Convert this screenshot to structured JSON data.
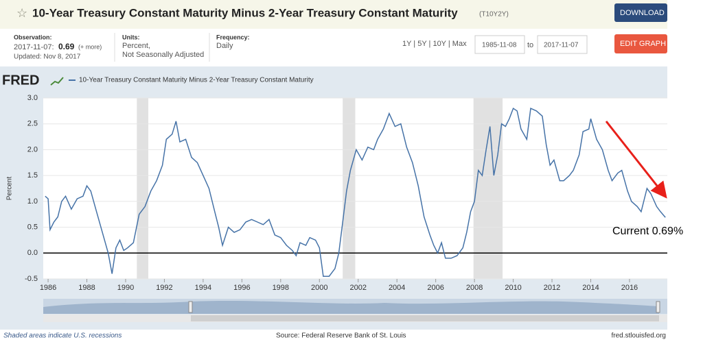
{
  "header": {
    "title": "10-Year Treasury Constant Maturity Minus 2-Year Treasury Constant Maturity",
    "series_id": "(T10Y2Y)",
    "download": "DOWNLOAD",
    "edit_graph": "EDIT GRAPH",
    "observation_label": "Observation:",
    "observation_date": "2017-11-07:",
    "observation_value": 0.69,
    "more": "(+ more)",
    "updated": "Updated: Nov 8, 2017",
    "units_label": "Units:",
    "units_1": "Percent,",
    "units_2": "Not Seasonally Adjusted",
    "frequency_label": "Frequency:",
    "frequency": "Daily",
    "ranges": "1Y | 5Y | 10Y | Max",
    "start_date": "1985-11-08",
    "to": "to",
    "end_date": "2017-11-07"
  },
  "chart_data": {
    "type": "line",
    "logo": "FRED",
    "ylabel": "Percent",
    "annotation": "Current 0.69%",
    "xlim": [
      1985.75,
      2017.95
    ],
    "ylim": [
      -0.5,
      3.0
    ],
    "xticks": [
      1986,
      1988,
      1990,
      1992,
      1994,
      1996,
      1998,
      2000,
      2002,
      2004,
      2006,
      2008,
      2010,
      2012,
      2014,
      2016
    ],
    "yticks": [
      {
        "value": 3,
        "label": "3.0"
      },
      2.5,
      {
        "value": 2,
        "label": "2.0"
      },
      {
        "value": 1.5,
        "label": "1.5"
      },
      {
        "value": 1,
        "label": "1.0"
      },
      0.5,
      {
        "value": 0,
        "label": "0.0"
      },
      -0.5
    ],
    "grid": true,
    "zero_line": true,
    "recessions": [
      [
        1990.58,
        1991.17
      ],
      [
        2001.2,
        2001.85
      ],
      [
        2007.95,
        2009.45
      ]
    ],
    "series": [
      {
        "name": "10-Year Treasury Constant Maturity Minus 2-Year Treasury Constant Maturity",
        "color": "#4572a7",
        "x": [
          1985.85,
          1986.0,
          1986.1,
          1986.3,
          1986.5,
          1986.7,
          1986.9,
          1987.2,
          1987.5,
          1987.8,
          1988.0,
          1988.2,
          1988.5,
          1988.8,
          1989.1,
          1989.3,
          1989.5,
          1989.7,
          1989.9,
          1990.1,
          1990.4,
          1990.7,
          1991.0,
          1991.3,
          1991.6,
          1991.9,
          1992.1,
          1992.4,
          1992.6,
          1992.8,
          1993.1,
          1993.4,
          1993.7,
          1994.0,
          1994.3,
          1994.6,
          1994.8,
          1995.0,
          1995.3,
          1995.6,
          1995.9,
          1996.2,
          1996.5,
          1996.8,
          1997.1,
          1997.4,
          1997.7,
          1998.0,
          1998.3,
          1998.6,
          1998.8,
          1999.0,
          1999.3,
          1999.5,
          1999.8,
          2000.0,
          2000.2,
          2000.5,
          2000.8,
          2001.0,
          2001.2,
          2001.4,
          2001.6,
          2001.9,
          2002.2,
          2002.5,
          2002.8,
          2003.0,
          2003.3,
          2003.6,
          2003.9,
          2004.2,
          2004.5,
          2004.8,
          2005.1,
          2005.4,
          2005.7,
          2005.9,
          2006.1,
          2006.3,
          2006.5,
          2006.8,
          2007.1,
          2007.4,
          2007.6,
          2007.8,
          2008.0,
          2008.2,
          2008.4,
          2008.6,
          2008.8,
          2009.0,
          2009.2,
          2009.4,
          2009.6,
          2009.8,
          2010.0,
          2010.2,
          2010.4,
          2010.7,
          2010.9,
          2011.2,
          2011.5,
          2011.7,
          2011.9,
          2012.1,
          2012.4,
          2012.6,
          2012.9,
          2013.1,
          2013.4,
          2013.6,
          2013.9,
          2014.0,
          2014.3,
          2014.6,
          2014.9,
          2015.1,
          2015.4,
          2015.6,
          2015.9,
          2016.1,
          2016.4,
          2016.6,
          2016.9,
          2017.1,
          2017.4,
          2017.6,
          2017.85
        ],
        "values": [
          1.1,
          1.05,
          0.45,
          0.6,
          0.7,
          1.0,
          1.1,
          0.85,
          1.05,
          1.1,
          1.3,
          1.2,
          0.8,
          0.4,
          0.0,
          -0.4,
          0.1,
          0.25,
          0.05,
          0.1,
          0.2,
          0.75,
          0.9,
          1.2,
          1.4,
          1.7,
          2.2,
          2.3,
          2.55,
          2.15,
          2.2,
          1.85,
          1.75,
          1.5,
          1.25,
          0.8,
          0.5,
          0.15,
          0.5,
          0.4,
          0.45,
          0.6,
          0.65,
          0.6,
          0.55,
          0.65,
          0.35,
          0.3,
          0.15,
          0.05,
          -0.05,
          0.2,
          0.15,
          0.3,
          0.25,
          0.1,
          -0.45,
          -0.45,
          -0.3,
          0.0,
          0.6,
          1.2,
          1.6,
          2.0,
          1.8,
          2.05,
          2.0,
          2.2,
          2.4,
          2.7,
          2.45,
          2.5,
          2.05,
          1.75,
          1.3,
          0.7,
          0.35,
          0.15,
          0.0,
          0.2,
          -0.1,
          -0.1,
          -0.05,
          0.1,
          0.4,
          0.8,
          1.0,
          1.6,
          1.5,
          2.0,
          2.45,
          1.5,
          1.9,
          2.5,
          2.45,
          2.6,
          2.8,
          2.75,
          2.4,
          2.2,
          2.8,
          2.75,
          2.65,
          2.1,
          1.7,
          1.8,
          1.4,
          1.4,
          1.5,
          1.6,
          1.9,
          2.35,
          2.4,
          2.6,
          2.2,
          2.0,
          1.6,
          1.4,
          1.55,
          1.6,
          1.2,
          1.0,
          0.9,
          0.8,
          1.25,
          1.15,
          0.9,
          0.8,
          0.69
        ]
      }
    ],
    "footer_left": "Shaded areas indicate U.S. recessions",
    "source": "Source: Federal Reserve Bank of St. Louis",
    "site": "fred.stlouisfed.org"
  }
}
